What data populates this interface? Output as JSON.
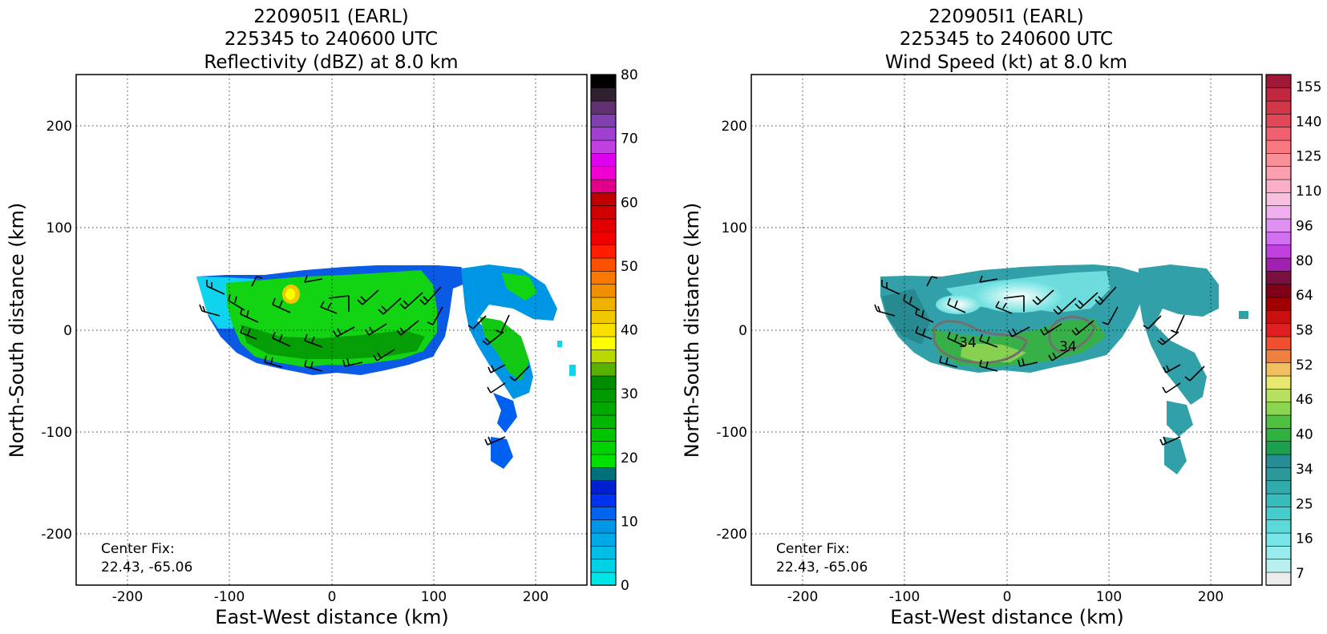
{
  "chart_data": [
    {
      "type": "heatmap",
      "title": [
        "220905I1 (EARL)",
        "225345 to 240600 UTC",
        "Reflectivity (dBZ) at 8.0 km"
      ],
      "xlabel": "East-West distance (km)",
      "ylabel": "North-South distance (km)",
      "xlim": [
        -250,
        250
      ],
      "ylim": [
        -250,
        250
      ],
      "xticks": [
        -200,
        -100,
        0,
        100,
        200
      ],
      "yticks": [
        200,
        100,
        0,
        -100,
        -200
      ],
      "grid": true,
      "annotation": [
        "Center Fix:",
        "22.43, -65.06"
      ],
      "colorbar": {
        "min": 0,
        "max": 80,
        "ticks": [
          0,
          10,
          20,
          30,
          40,
          50,
          60,
          70,
          80
        ],
        "colors": [
          "#00e6e6",
          "#00d2e6",
          "#00bee6",
          "#00aae6",
          "#0096e6",
          "#0064f0",
          "#0032f0",
          "#0020d0",
          "#00707a",
          "#00e000",
          "#00d200",
          "#00c400",
          "#00b600",
          "#00a800",
          "#009a00",
          "#008c00",
          "#58b000",
          "#b8d800",
          "#ffff00",
          "#f8e000",
          "#f0c800",
          "#f0b000",
          "#f09000",
          "#f87800",
          "#ff5000",
          "#ff1e00",
          "#f00000",
          "#e00000",
          "#d00000",
          "#c00000",
          "#e0008c",
          "#f000d2",
          "#e000f0",
          "#c040e0",
          "#a040d0",
          "#8040b0",
          "#603070",
          "#302030",
          "#000000"
        ]
      },
      "wind_barbs": true
    },
    {
      "type": "heatmap",
      "title": [
        "220905I1 (EARL)",
        "225345 to 240600 UTC",
        "Wind Speed (kt) at 8.0 km"
      ],
      "xlabel": "East-West distance (km)",
      "ylabel": "North-South distance (km)",
      "xlim": [
        -250,
        250
      ],
      "ylim": [
        -250,
        250
      ],
      "xticks": [
        -200,
        -100,
        0,
        100,
        200
      ],
      "yticks": [
        200,
        100,
        0,
        -100,
        -200
      ],
      "grid": true,
      "annotation": [
        "Center Fix:",
        "22.43, -65.06"
      ],
      "contour_labels": [
        "34",
        "34"
      ],
      "colorbar": {
        "ticks_top_to_bottom": [
          "155",
          "140",
          "125",
          "110",
          "96",
          "80",
          "64",
          "58",
          "52",
          "46",
          "40",
          "34",
          "25",
          "16",
          "7"
        ],
        "colors_bottom_to_top": [
          "#ececec",
          "#b8f0f0",
          "#98ecec",
          "#78e6e6",
          "#5cdada",
          "#46cccc",
          "#38bcbc",
          "#30aaaa",
          "#2c9a9a",
          "#288c94",
          "#1ca050",
          "#30b040",
          "#50c040",
          "#8cd450",
          "#b8e060",
          "#e8e870",
          "#f0c060",
          "#f08040",
          "#f05030",
          "#e02020",
          "#c81010",
          "#a00000",
          "#800018",
          "#7a1040",
          "#a020b0",
          "#c040e0",
          "#d070f0",
          "#e090f0",
          "#f0b0f0",
          "#f8c0e0",
          "#fcb0c8",
          "#fca0b0",
          "#f89098",
          "#f87880",
          "#f06070",
          "#e04858",
          "#d03848",
          "#c02840",
          "#a01838"
        ]
      },
      "wind_barbs": true
    }
  ]
}
